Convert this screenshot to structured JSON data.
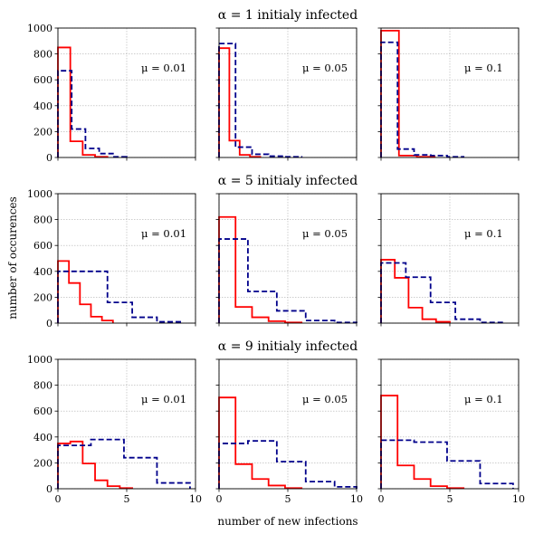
{
  "figure": {
    "row_titles": [
      "α = 1 initialy infected",
      "α = 5 initialy infected",
      "α = 9 initialy infected"
    ],
    "xlabel": "number of new infections",
    "ylabel": "number of occurences"
  },
  "chart_data": [
    {
      "type": "histogram",
      "row": 0,
      "col": 0,
      "annotation": "μ = 0.01",
      "xlim": [
        0,
        10
      ],
      "ylim": [
        0,
        1000
      ],
      "xticks": [
        "0",
        "5",
        "10"
      ],
      "yticks": [
        "0",
        "200",
        "400",
        "600",
        "800",
        "1000"
      ],
      "grid": true,
      "series": [
        {
          "style": "solid",
          "color": "#ff0000",
          "edges": [
            0,
            0.9,
            1.8,
            2.7,
            3.6
          ],
          "values": [
            850,
            125,
            20,
            5
          ]
        },
        {
          "style": "dashed",
          "color": "#00008b",
          "edges": [
            0,
            1,
            2,
            3,
            4,
            5
          ],
          "values": [
            670,
            220,
            70,
            30,
            5
          ]
        }
      ]
    },
    {
      "type": "histogram",
      "row": 0,
      "col": 1,
      "annotation": "μ = 0.05",
      "xlim": [
        0,
        10
      ],
      "ylim": [
        0,
        1000
      ],
      "xticks": [
        "0",
        "5",
        "10"
      ],
      "yticks": [
        "0",
        "200",
        "400",
        "600",
        "800",
        "1000"
      ],
      "grid": true,
      "series": [
        {
          "style": "solid",
          "color": "#ff0000",
          "edges": [
            0,
            0.75,
            1.5,
            2.25,
            3.0
          ],
          "values": [
            845,
            130,
            20,
            5
          ]
        },
        {
          "style": "dashed",
          "color": "#00008b",
          "edges": [
            0,
            1.2,
            2.4,
            3.6,
            4.8,
            6.0
          ],
          "values": [
            880,
            80,
            25,
            10,
            5
          ]
        }
      ]
    },
    {
      "type": "histogram",
      "row": 0,
      "col": 2,
      "annotation": "μ = 0.1",
      "xlim": [
        0,
        10
      ],
      "ylim": [
        0,
        1000
      ],
      "xticks": [
        "0",
        "5",
        "10"
      ],
      "yticks": [
        "0",
        "200",
        "400",
        "600",
        "800",
        "1000"
      ],
      "grid": true,
      "series": [
        {
          "style": "solid",
          "color": "#ff0000",
          "edges": [
            0,
            1.3,
            2.6,
            3.9
          ],
          "values": [
            980,
            15,
            5
          ]
        },
        {
          "style": "dashed",
          "color": "#00008b",
          "edges": [
            0,
            1.2,
            2.4,
            3.6,
            4.8,
            6.0
          ],
          "values": [
            890,
            65,
            20,
            15,
            5
          ]
        }
      ]
    },
    {
      "type": "histogram",
      "row": 1,
      "col": 0,
      "annotation": "μ = 0.01",
      "xlim": [
        0,
        10
      ],
      "ylim": [
        0,
        1000
      ],
      "xticks": [
        "0",
        "5",
        "10"
      ],
      "yticks": [
        "0",
        "200",
        "400",
        "600",
        "800",
        "1000"
      ],
      "grid": true,
      "series": [
        {
          "style": "solid",
          "color": "#ff0000",
          "edges": [
            0,
            0.8,
            1.6,
            2.4,
            3.2,
            4.0
          ],
          "values": [
            480,
            310,
            145,
            50,
            20
          ]
        },
        {
          "style": "dashed",
          "color": "#00008b",
          "edges": [
            0,
            3.6,
            5.4,
            7.2,
            9.0
          ],
          "values": [
            400,
            160,
            45,
            10
          ]
        }
      ]
    },
    {
      "type": "histogram",
      "row": 1,
      "col": 1,
      "annotation": "μ = 0.05",
      "xlim": [
        0,
        10
      ],
      "ylim": [
        0,
        1000
      ],
      "xticks": [
        "0",
        "5",
        "10"
      ],
      "yticks": [
        "0",
        "200",
        "400",
        "600",
        "800",
        "1000"
      ],
      "grid": true,
      "series": [
        {
          "style": "solid",
          "color": "#ff0000",
          "edges": [
            0,
            1.2,
            2.4,
            3.6,
            4.8,
            6.0
          ],
          "values": [
            820,
            125,
            45,
            15,
            5
          ]
        },
        {
          "style": "dashed",
          "color": "#00008b",
          "edges": [
            0,
            2.1,
            4.2,
            6.3,
            8.4,
            10
          ],
          "values": [
            650,
            245,
            95,
            20,
            5
          ]
        }
      ]
    },
    {
      "type": "histogram",
      "row": 1,
      "col": 2,
      "annotation": "μ = 0.1",
      "xlim": [
        0,
        10
      ],
      "ylim": [
        0,
        1000
      ],
      "xticks": [
        "0",
        "5",
        "10"
      ],
      "yticks": [
        "0",
        "200",
        "400",
        "600",
        "800",
        "1000"
      ],
      "grid": true,
      "series": [
        {
          "style": "solid",
          "color": "#ff0000",
          "edges": [
            0,
            1.0,
            2.0,
            3.0,
            4.0,
            5.0
          ],
          "values": [
            490,
            350,
            120,
            30,
            10
          ]
        },
        {
          "style": "dashed",
          "color": "#00008b",
          "edges": [
            0,
            1.8,
            3.6,
            5.4,
            7.2,
            9.0
          ],
          "values": [
            465,
            355,
            160,
            30,
            5
          ]
        }
      ]
    },
    {
      "type": "histogram",
      "row": 2,
      "col": 0,
      "annotation": "μ = 0.01",
      "xlim": [
        0,
        10
      ],
      "ylim": [
        0,
        1000
      ],
      "xticks": [
        "0",
        "5",
        "10"
      ],
      "yticks": [
        "0",
        "200",
        "400",
        "600",
        "800",
        "1000"
      ],
      "grid": true,
      "series": [
        {
          "style": "solid",
          "color": "#ff0000",
          "edges": [
            0,
            0.9,
            1.8,
            2.7,
            3.6,
            4.5,
            5.4
          ],
          "values": [
            350,
            365,
            195,
            65,
            20,
            5
          ]
        },
        {
          "style": "dashed",
          "color": "#00008b",
          "edges": [
            0,
            2.4,
            4.8,
            7.2,
            9.6
          ],
          "values": [
            335,
            380,
            240,
            45
          ]
        }
      ]
    },
    {
      "type": "histogram",
      "row": 2,
      "col": 1,
      "annotation": "μ = 0.05",
      "xlim": [
        0,
        10
      ],
      "ylim": [
        0,
        1000
      ],
      "xticks": [
        "0",
        "5",
        "10"
      ],
      "yticks": [
        "0",
        "200",
        "400",
        "600",
        "800",
        "1000"
      ],
      "grid": true,
      "series": [
        {
          "style": "solid",
          "color": "#ff0000",
          "edges": [
            0,
            1.2,
            2.4,
            3.6,
            4.8,
            6.0
          ],
          "values": [
            705,
            190,
            75,
            25,
            5
          ]
        },
        {
          "style": "dashed",
          "color": "#00008b",
          "edges": [
            0,
            2.1,
            4.2,
            6.3,
            8.4,
            10
          ],
          "values": [
            350,
            370,
            210,
            55,
            15
          ]
        }
      ]
    },
    {
      "type": "histogram",
      "row": 2,
      "col": 2,
      "annotation": "μ = 0.1",
      "xlim": [
        0,
        10
      ],
      "ylim": [
        0,
        1000
      ],
      "xticks": [
        "0",
        "5",
        "10"
      ],
      "yticks": [
        "0",
        "200",
        "400",
        "600",
        "800",
        "1000"
      ],
      "grid": true,
      "series": [
        {
          "style": "solid",
          "color": "#ff0000",
          "edges": [
            0,
            1.2,
            2.4,
            3.6,
            4.8,
            6.0
          ],
          "values": [
            720,
            180,
            75,
            20,
            5
          ]
        },
        {
          "style": "dashed",
          "color": "#00008b",
          "edges": [
            0,
            2.4,
            4.8,
            7.2,
            9.6
          ],
          "values": [
            375,
            360,
            215,
            40
          ]
        }
      ]
    }
  ]
}
